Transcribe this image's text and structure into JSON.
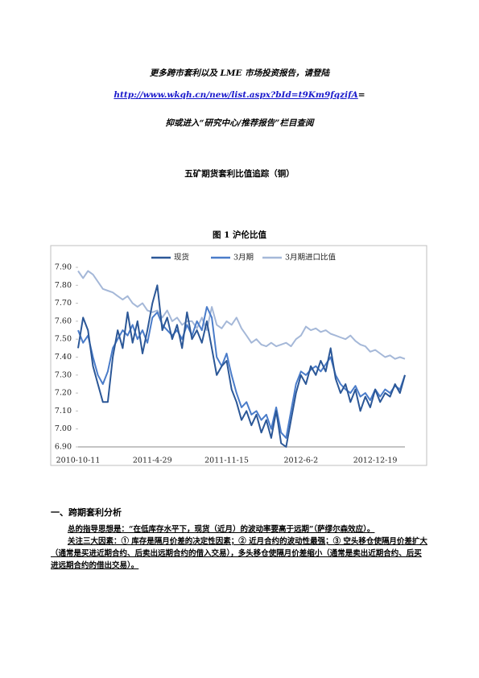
{
  "header": {
    "line1": "更多跨市套利以及 LME 市场投资报告，请登陆",
    "link": "http://www.wkqh.cn/new/list.aspx?bId=t9Km9fqzifA",
    "link_suffix": "=",
    "line3": "抑或进入“研究中心/推荐报告”栏目查阅"
  },
  "title": "五矿期货套利比值追踪（铜）",
  "figure_caption": "图 1   沪伦比值",
  "section": {
    "heading": "一、跨期套利分析",
    "paragraphs": [
      "总的指导思想是：“在低库存水平下，现货（近月）的波动率要高于远期”（萨缪尔森效应）。",
      "关注三大因素：① 库存是隔月价差的决定性因素；② 近月合约的波动性最强；③ 空头移仓使隔月价差扩大（通常是买进近期合约、后卖出远期合约的借入交易），多头移仓使隔月价差缩小（通常是卖出近期合约、后买进远期合约的借出交易）。"
    ]
  },
  "chart_data": {
    "type": "line",
    "categories": [
      "2010-10-11",
      null,
      null,
      null,
      null,
      null,
      null,
      null,
      null,
      null,
      null,
      null,
      null,
      null,
      null,
      "2011-4-29",
      null,
      null,
      null,
      null,
      null,
      null,
      null,
      null,
      null,
      null,
      null,
      null,
      null,
      null,
      "2011-11-15",
      null,
      null,
      null,
      null,
      null,
      null,
      null,
      null,
      null,
      null,
      null,
      null,
      null,
      null,
      "2012-6-2",
      null,
      null,
      null,
      null,
      null,
      null,
      null,
      null,
      null,
      null,
      null,
      null,
      null,
      null,
      "2012-12-19",
      null,
      null,
      null,
      null,
      null,
      null
    ],
    "series": [
      {
        "name": "现货",
        "color": "#2b5797",
        "values": [
          7.45,
          7.62,
          7.55,
          7.35,
          7.25,
          7.15,
          7.15,
          7.4,
          7.55,
          7.45,
          7.65,
          7.48,
          7.6,
          7.42,
          7.55,
          7.7,
          7.8,
          7.55,
          7.62,
          7.5,
          7.58,
          7.45,
          7.65,
          7.5,
          7.55,
          7.48,
          7.6,
          7.45,
          7.3,
          7.35,
          7.38,
          7.22,
          7.15,
          7.05,
          7.1,
          7.02,
          7.08,
          6.98,
          7.05,
          6.95,
          7.1,
          6.92,
          6.9,
          7.05,
          7.2,
          7.3,
          7.25,
          7.35,
          7.3,
          7.38,
          7.32,
          7.45,
          7.28,
          7.2,
          7.25,
          7.15,
          7.22,
          7.1,
          7.18,
          7.12,
          7.22,
          7.15,
          7.2,
          7.18,
          7.25,
          7.2,
          7.3
        ]
      },
      {
        "name": "3月期",
        "color": "#4a7cc9",
        "values": [
          7.55,
          7.48,
          7.52,
          7.4,
          7.3,
          7.25,
          7.32,
          7.45,
          7.5,
          7.55,
          7.52,
          7.58,
          7.5,
          7.55,
          7.48,
          7.62,
          7.65,
          7.58,
          7.55,
          7.52,
          7.55,
          7.5,
          7.58,
          7.52,
          7.6,
          7.55,
          7.68,
          7.62,
          7.4,
          7.35,
          7.42,
          7.3,
          7.2,
          7.12,
          7.15,
          7.08,
          7.1,
          7.05,
          7.08,
          7.0,
          7.12,
          6.98,
          6.95,
          7.1,
          7.25,
          7.32,
          7.3,
          7.33,
          7.35,
          7.32,
          7.36,
          7.4,
          7.3,
          7.25,
          7.22,
          7.2,
          7.24,
          7.18,
          7.2,
          7.16,
          7.22,
          7.18,
          7.22,
          7.2,
          7.24,
          7.22,
          7.3
        ]
      },
      {
        "name": "3月期进口比值",
        "color": "#a5b8d8",
        "values": [
          7.88,
          7.84,
          7.88,
          7.86,
          7.82,
          7.78,
          7.77,
          7.76,
          7.74,
          7.72,
          7.74,
          7.7,
          7.68,
          7.7,
          7.66,
          7.65,
          7.66,
          7.62,
          7.66,
          7.6,
          7.62,
          7.58,
          7.6,
          7.6,
          7.56,
          7.62,
          7.55,
          7.68,
          7.58,
          7.56,
          7.6,
          7.58,
          7.62,
          7.56,
          7.52,
          7.48,
          7.5,
          7.47,
          7.46,
          7.48,
          7.46,
          7.47,
          7.48,
          7.46,
          7.5,
          7.52,
          7.57,
          7.55,
          7.56,
          7.54,
          7.55,
          7.53,
          7.52,
          7.51,
          7.5,
          7.52,
          7.49,
          7.47,
          7.46,
          7.43,
          7.44,
          7.42,
          7.4,
          7.41,
          7.39,
          7.4,
          7.39
        ]
      }
    ],
    "ylim": [
      6.9,
      7.9
    ],
    "yticks": [
      {
        "value": 6.9,
        "label": "6.90"
      },
      {
        "value": 7.0,
        "label": "7.00"
      },
      {
        "value": 7.1,
        "label": "7.10"
      },
      {
        "value": 7.2,
        "label": "7.20"
      },
      {
        "value": 7.3,
        "label": "7.30"
      },
      {
        "value": 7.4,
        "label": "7.40"
      },
      {
        "value": 7.5,
        "label": "7.50"
      },
      {
        "value": 7.6,
        "label": "7.60"
      },
      {
        "value": 7.7,
        "label": "7.70"
      },
      {
        "value": 7.8,
        "label": "7.80"
      },
      {
        "value": 7.9,
        "label": "7.90"
      }
    ],
    "grid": false,
    "legend": "top"
  }
}
